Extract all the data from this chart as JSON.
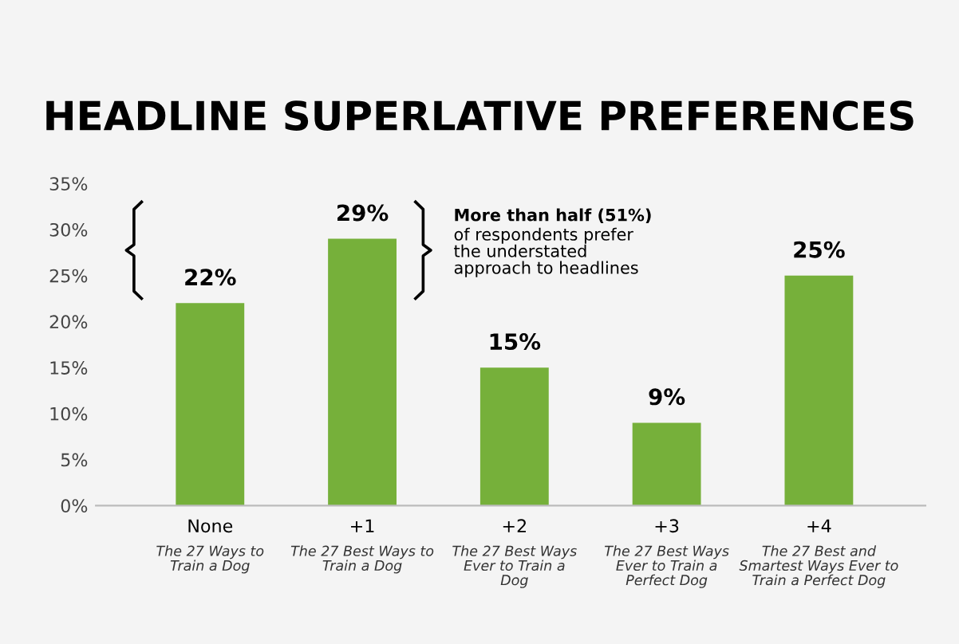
{
  "chart_data": {
    "type": "bar",
    "title": "HEADLINE SUPERLATIVE PREFERENCES",
    "categories": [
      "None\nThe 27 Ways to\nTrain a Dog",
      "+1\nThe 27 Best Ways to\nTrain a Dog",
      "+2\nThe 27 Best Ways\nEver to Train a\nDog",
      "+3\nThe 27 Best Ways\nEver to Train a\nPerfect Dog",
      "+4\nThe 27 Best and\nSmartest Ways Ever to\nTrain a Perfect Dog"
    ],
    "values": [
      22,
      29,
      15,
      9,
      25
    ],
    "color": "#76b03a",
    "value_labels": [
      "22%",
      "29%",
      "15%",
      "9%",
      "25%"
    ],
    "ylim": [
      0,
      35
    ],
    "yticks": [
      {
        "value": 0,
        "label": "0%"
      },
      {
        "value": 5,
        "label": "5%"
      },
      {
        "value": 10,
        "label": "10%"
      },
      {
        "value": 15,
        "label": "15%"
      },
      {
        "value": 20,
        "label": "20%"
      },
      {
        "value": 25,
        "label": "25%"
      },
      {
        "value": 30,
        "label": "30%"
      },
      {
        "value": 35,
        "label": "35%"
      }
    ],
    "grid": false,
    "legend": false,
    "annotations": [
      "More than half (51%)\nof respondents prefer\nthe understated\napproach to headlines"
    ]
  }
}
